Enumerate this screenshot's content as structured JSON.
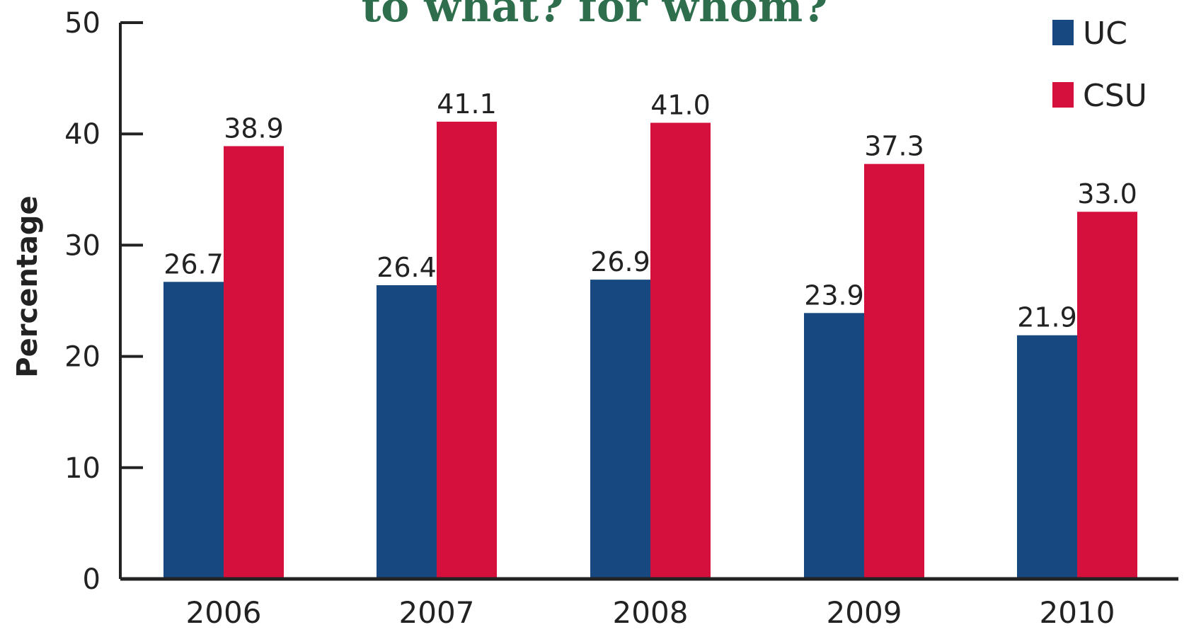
{
  "colors": {
    "title": "#2e6e4d",
    "uc": "#17487f",
    "csu": "#d6103c",
    "axis": "#222222"
  },
  "chart_data": {
    "type": "bar",
    "title": "to what? for whom?",
    "xlabel": "",
    "ylabel": "Percentage",
    "ylim": [
      0,
      50
    ],
    "yticks": [
      0,
      10,
      20,
      30,
      40,
      50
    ],
    "categories": [
      "2006",
      "2007",
      "2008",
      "2009",
      "2010"
    ],
    "legend_position": "top-right",
    "grid": false,
    "series": [
      {
        "name": "UC",
        "color": "#17487f",
        "values": [
          26.7,
          26.4,
          26.9,
          23.9,
          21.9
        ],
        "labels": [
          "26.7",
          "26.4",
          "26.9",
          "23.9",
          "21.9"
        ]
      },
      {
        "name": "CSU",
        "color": "#d6103c",
        "values": [
          38.9,
          41.1,
          41.0,
          37.3,
          33.0
        ],
        "labels": [
          "38.9",
          "41.1",
          "41.0",
          "37.3",
          "33.0"
        ]
      }
    ]
  }
}
